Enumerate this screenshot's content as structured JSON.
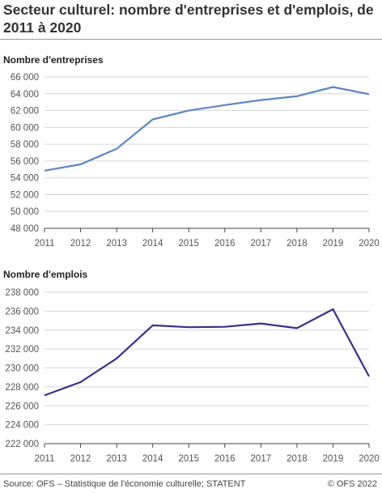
{
  "title": "Secteur culturel: nombre d'entreprises et d'emplois, de 2011 à 2020",
  "source": "Source: OFS – Statistique de l'économie culturelle; STATENT",
  "copyright": "© OFS 2022",
  "chart_data": [
    {
      "type": "line",
      "title": "Nombre d'entreprises",
      "x": [
        "2011",
        "2012",
        "2013",
        "2014",
        "2015",
        "2016",
        "2017",
        "2018",
        "2019",
        "2020"
      ],
      "series": [
        {
          "values": [
            54850,
            55600,
            57450,
            60950,
            62000,
            62650,
            63250,
            63700,
            64800,
            63950
          ],
          "color": "#5b87c4"
        }
      ],
      "ylim": [
        48000,
        66000
      ],
      "yticks": [
        48000,
        50000,
        52000,
        54000,
        56000,
        58000,
        60000,
        62000,
        64000,
        66000
      ],
      "ytick_labels": [
        "48 000",
        "50 000",
        "52 000",
        "54 000",
        "56 000",
        "58 000",
        "60 000",
        "62 000",
        "64 000",
        "66 000"
      ],
      "grid": true
    },
    {
      "type": "line",
      "title": "Nombre d'emplois",
      "x": [
        "2011",
        "2012",
        "2013",
        "2014",
        "2015",
        "2016",
        "2017",
        "2018",
        "2019",
        "2020"
      ],
      "series": [
        {
          "values": [
            227100,
            228500,
            231000,
            234500,
            234300,
            234350,
            234700,
            234200,
            236200,
            229100
          ],
          "color": "#3a2f8b"
        }
      ],
      "ylim": [
        222000,
        238000
      ],
      "yticks": [
        222000,
        224000,
        226000,
        228000,
        230000,
        232000,
        234000,
        236000,
        238000
      ],
      "ytick_labels": [
        "222 000",
        "224 000",
        "226 000",
        "228 000",
        "230 000",
        "232 000",
        "234 000",
        "236 000",
        "238 000"
      ],
      "grid": true
    }
  ]
}
